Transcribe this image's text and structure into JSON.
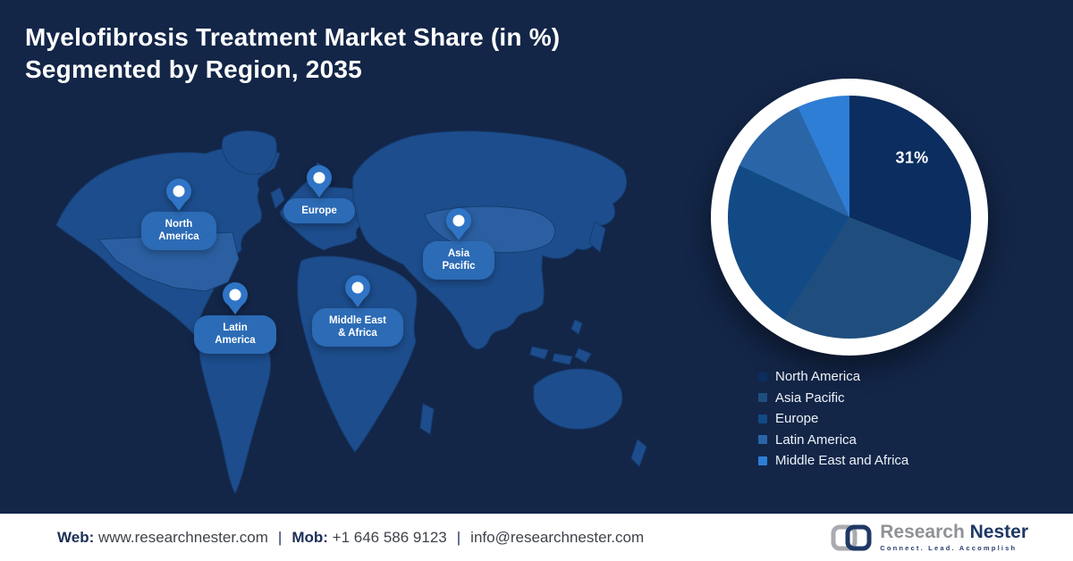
{
  "header": {
    "title_line1": "Myelofibrosis Treatment Market Share (in %)",
    "title_line2": "Segmented by Region, 2035"
  },
  "map": {
    "pins": [
      {
        "region": "north-america",
        "lines": [
          "North",
          "America"
        ]
      },
      {
        "region": "europe",
        "lines": [
          "Europe",
          ""
        ]
      },
      {
        "region": "asia-pacific",
        "lines": [
          "Asia",
          "Pacific"
        ]
      },
      {
        "region": "middle-east-africa",
        "lines": [
          "Middle East",
          "& Africa"
        ]
      },
      {
        "region": "latin-america",
        "lines": [
          "Latin",
          "America"
        ]
      }
    ],
    "pin_color": "#2f74c5",
    "label_color": "#2c6bb5",
    "land_color": "#1d4d8c",
    "land_light_color": "#2b5fa1"
  },
  "chart_data": {
    "type": "pie",
    "title": "Myelofibrosis Treatment Market Share (in %) Segmented by Region, 2035",
    "labels": [
      "North America",
      "Asia Pacific",
      "Europe",
      "Latin America",
      "Middle East and Africa"
    ],
    "values": [
      31,
      28,
      23,
      11,
      7
    ],
    "colors": [
      "#0b2d5f",
      "#1f4e7e",
      "#124a85",
      "#2a65a8",
      "#2e7ed6"
    ],
    "start_angle_deg": 0,
    "direction": "clockwise",
    "legend_position": "below-right",
    "annotation": {
      "text": "31%",
      "slice": "North America"
    }
  },
  "footer": {
    "web_label": "Web:",
    "web_value": "www.researchnester.com",
    "mob_label": "Mob:",
    "mob_value": "+1 646 586 9123",
    "email": "info@researchnester.com",
    "separator": "|"
  },
  "logo": {
    "brand_first": "Research",
    "brand_second": "Nester",
    "tagline": "Connect. Lead. Accomplish",
    "gray": "#a9abae",
    "navy": "#1f3865"
  },
  "colors": {
    "background": "#132648",
    "footer_background": "#ffffff",
    "title_text": "#ffffff"
  }
}
